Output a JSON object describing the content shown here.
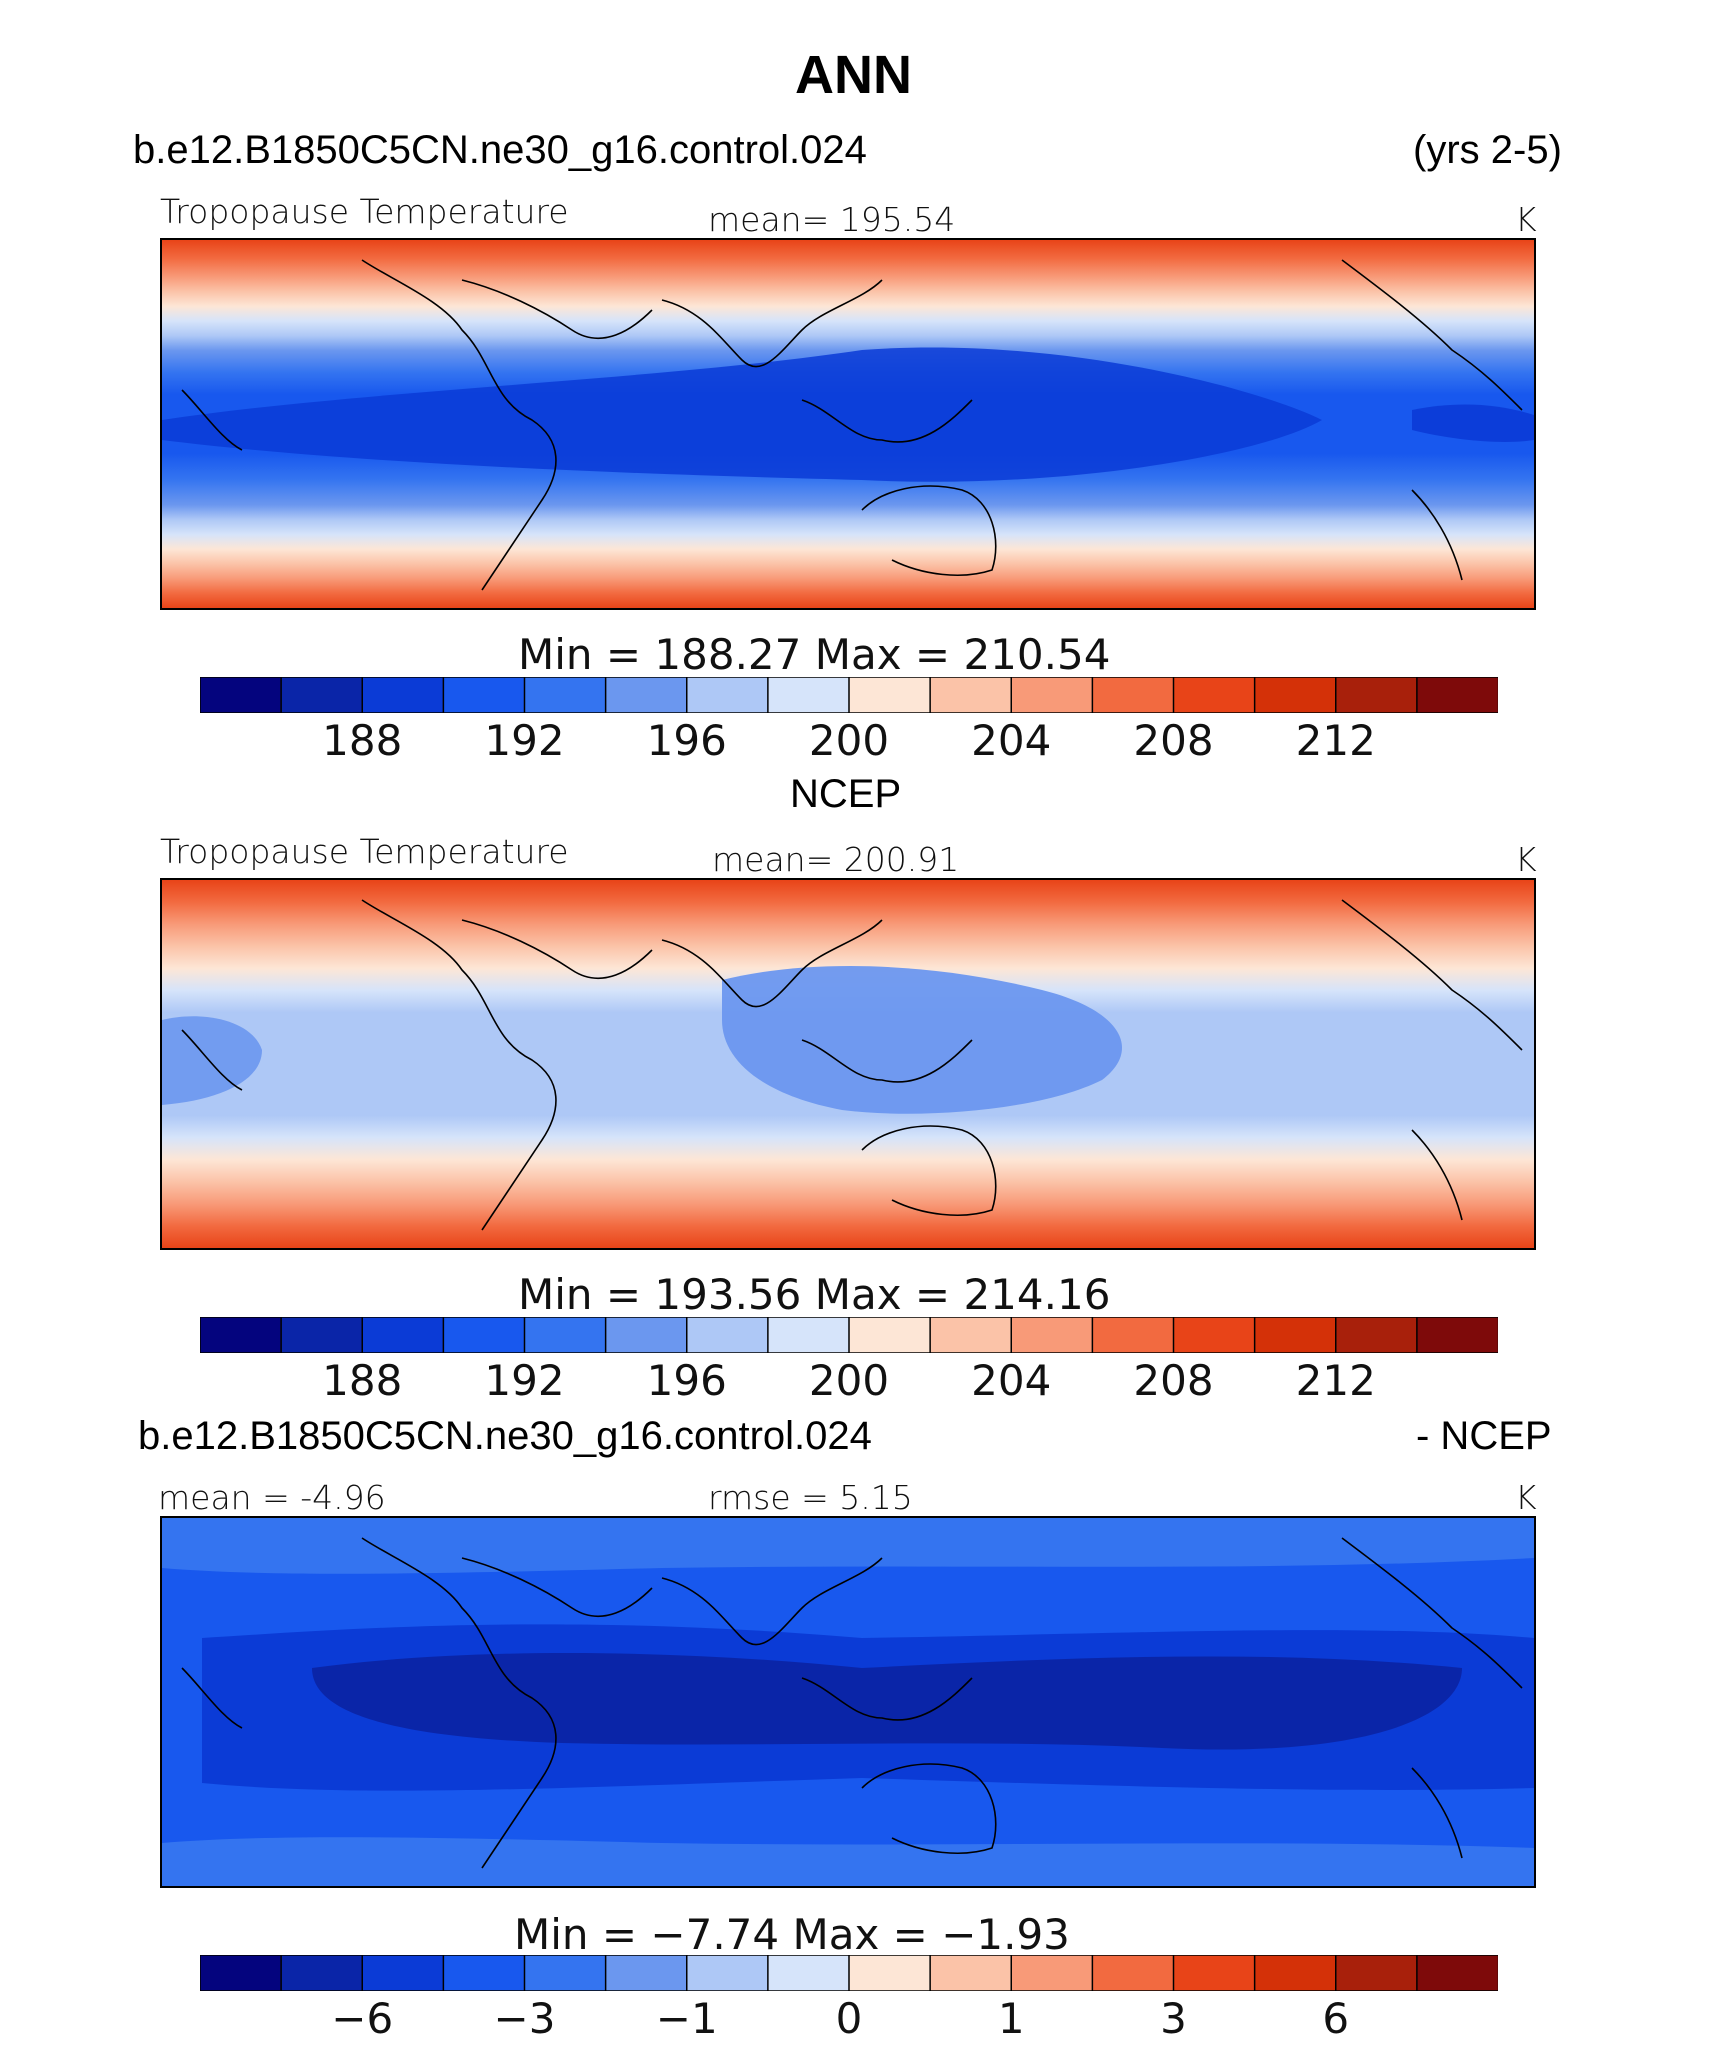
{
  "figure_title": "ANN",
  "panel1": {
    "case": "b.e12.B1850C5CN.ne30_g16.control.024",
    "years": "(yrs 2-5)",
    "left_label": "Tropopause Temperature",
    "center_label": "mean=  195.54",
    "units": "K",
    "minmax": "Min  =  188.27  Max  =  210.54",
    "ticks": [
      "188",
      "192",
      "196",
      "200",
      "204",
      "208",
      "212"
    ]
  },
  "panel2": {
    "header": "NCEP",
    "left_label": "Tropopause Temperature",
    "center_label": "mean=  200.91",
    "units": "K",
    "minmax": "Min  =  193.56  Max  =  214.16",
    "ticks": [
      "188",
      "192",
      "196",
      "200",
      "204",
      "208",
      "212"
    ]
  },
  "panel3": {
    "case": "b.e12.B1850C5CN.ne30_g16.control.024",
    "suffix": "- NCEP",
    "left_label": "mean =   -4.96",
    "center_label": "rmse =    5.15",
    "units": "K",
    "minmax": "Min  =   −7.74  Max  =   −1.93",
    "ticks": [
      "−6",
      "−3",
      "−1",
      "0",
      "1",
      "3",
      "6"
    ]
  },
  "colorbar_colors": [
    "#04047e",
    "#0a25a8",
    "#0b3bd6",
    "#1858ee",
    "#3474f0",
    "#6b97ef",
    "#aec8f6",
    "#d6e4fa",
    "#fde6d6",
    "#fbc3a8",
    "#f89a78",
    "#f26a40",
    "#e84418",
    "#d43108",
    "#a8200b",
    "#7e0a0a"
  ]
}
